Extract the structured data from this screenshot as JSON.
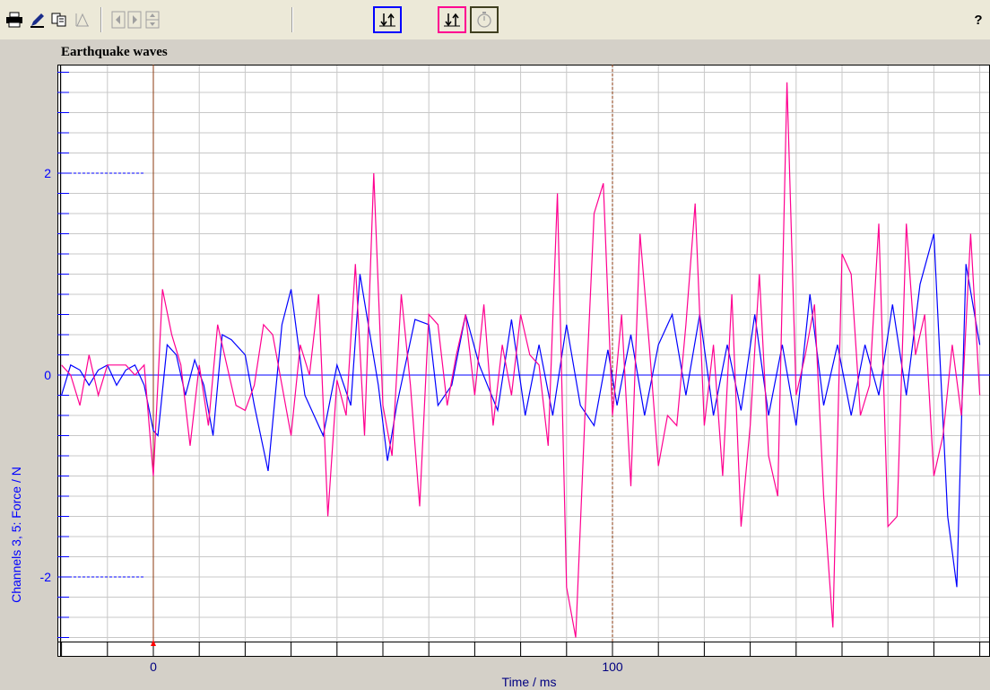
{
  "toolbar": {
    "items": [
      {
        "name": "print-icon"
      },
      {
        "name": "edit-icon"
      },
      {
        "name": "copy-icon"
      },
      {
        "name": "peak-icon"
      },
      {
        "name": "scroll-left-icon"
      },
      {
        "name": "scroll-right-icon"
      },
      {
        "name": "zoom-icon"
      },
      {
        "name": "channel-a-scale-icon",
        "color": "#0000ff"
      },
      {
        "name": "channel-b-scale-icon",
        "color": "#ff0090"
      },
      {
        "name": "stopwatch-icon"
      }
    ],
    "help_label": "?"
  },
  "chart_data": {
    "type": "line",
    "title": "Earthquake waves",
    "xlabel": "Time / ms",
    "ylabel": "Channels 3, 5: Force / N",
    "xlim": [
      -20,
      180
    ],
    "ylim": [
      -2.6,
      3.0
    ],
    "x_ticks": [
      0,
      100
    ],
    "y_ticks": [
      -2,
      0,
      2
    ],
    "grid": true,
    "markers": [
      {
        "x": 0,
        "style": "solid",
        "color": "#8b3a0f"
      },
      {
        "x": 100,
        "style": "dashed",
        "color": "#8b3a0f"
      }
    ],
    "series": [
      {
        "color": "#0000ff",
        "x": [
          -20,
          -18,
          -16,
          -14,
          -12,
          -10,
          -8,
          -6,
          -4,
          -2,
          0,
          1,
          3,
          5,
          7,
          9,
          11,
          13,
          15,
          17,
          20,
          22,
          25,
          28,
          30,
          33,
          37,
          40,
          43,
          45,
          49,
          51,
          53,
          57,
          60,
          62,
          65,
          68,
          71,
          75,
          78,
          81,
          84,
          87,
          90,
          93,
          96,
          99,
          101,
          104,
          107,
          110,
          113,
          116,
          119,
          122,
          125,
          128,
          131,
          134,
          137,
          140,
          143,
          146,
          149,
          152,
          155,
          158,
          161,
          164,
          167,
          170,
          173,
          175,
          177,
          180
        ],
        "values": [
          -0.2,
          0.1,
          0.05,
          -0.1,
          0.05,
          0.1,
          -0.1,
          0.05,
          0.1,
          -0.1,
          -0.55,
          -0.6,
          0.3,
          0.2,
          -0.2,
          0.15,
          -0.1,
          -0.6,
          0.4,
          0.35,
          0.2,
          -0.3,
          -0.95,
          0.5,
          0.85,
          -0.2,
          -0.6,
          0.1,
          -0.3,
          1.0,
          -0.1,
          -0.85,
          -0.3,
          0.55,
          0.5,
          -0.3,
          -0.1,
          0.6,
          0.1,
          -0.35,
          0.55,
          -0.4,
          0.3,
          -0.4,
          0.5,
          -0.3,
          -0.5,
          0.25,
          -0.3,
          0.4,
          -0.4,
          0.3,
          0.6,
          -0.2,
          0.6,
          -0.4,
          0.3,
          -0.35,
          0.6,
          -0.4,
          0.3,
          -0.5,
          0.8,
          -0.3,
          0.3,
          -0.4,
          0.3,
          -0.2,
          0.7,
          -0.2,
          0.9,
          1.4,
          -1.4,
          -2.1,
          1.1,
          0.3
        ]
      },
      {
        "color": "#ff0090",
        "x": [
          -20,
          -18,
          -16,
          -14,
          -12,
          -10,
          -8,
          -6,
          -4,
          -2,
          0,
          2,
          4,
          6,
          8,
          10,
          12,
          14,
          16,
          18,
          20,
          22,
          24,
          26,
          28,
          30,
          32,
          34,
          36,
          38,
          40,
          42,
          44,
          46,
          48,
          50,
          52,
          54,
          56,
          58,
          60,
          62,
          64,
          66,
          68,
          70,
          72,
          74,
          76,
          78,
          80,
          82,
          84,
          86,
          88,
          90,
          92,
          94,
          96,
          98,
          100,
          102,
          104,
          106,
          108,
          110,
          112,
          114,
          116,
          118,
          120,
          122,
          124,
          126,
          128,
          130,
          132,
          134,
          136,
          138,
          140,
          142,
          144,
          146,
          148,
          150,
          152,
          154,
          156,
          158,
          160,
          162,
          164,
          166,
          168,
          170,
          172,
          174,
          176,
          178,
          180
        ],
        "values": [
          0.1,
          0.0,
          -0.3,
          0.2,
          -0.2,
          0.1,
          0.1,
          0.1,
          0.0,
          0.1,
          -1.0,
          0.85,
          0.4,
          0.1,
          -0.7,
          0.1,
          -0.5,
          0.5,
          0.1,
          -0.3,
          -0.35,
          -0.1,
          0.5,
          0.4,
          -0.1,
          -0.6,
          0.3,
          0.0,
          0.8,
          -1.4,
          -0.05,
          -0.4,
          1.1,
          -0.6,
          2.0,
          -0.3,
          -0.8,
          0.8,
          -0.1,
          -1.3,
          0.6,
          0.5,
          -0.3,
          0.2,
          0.6,
          -0.2,
          0.7,
          -0.5,
          0.3,
          -0.2,
          0.6,
          0.2,
          0.1,
          -0.7,
          1.8,
          -2.1,
          -2.6,
          -0.4,
          1.6,
          1.9,
          -0.4,
          0.6,
          -1.1,
          1.4,
          0.3,
          -0.9,
          -0.4,
          -0.5,
          0.5,
          1.7,
          -0.5,
          0.3,
          -1.0,
          0.8,
          -1.5,
          -0.5,
          1.0,
          -0.8,
          -1.2,
          2.9,
          -0.2,
          0.2,
          0.7,
          -1.2,
          -2.5,
          1.2,
          1.0,
          -0.4,
          -0.1,
          1.5,
          -1.5,
          -1.4,
          1.5,
          0.2,
          0.6,
          -1.0,
          -0.6,
          0.3,
          -0.4,
          1.4,
          -0.2
        ]
      }
    ]
  }
}
